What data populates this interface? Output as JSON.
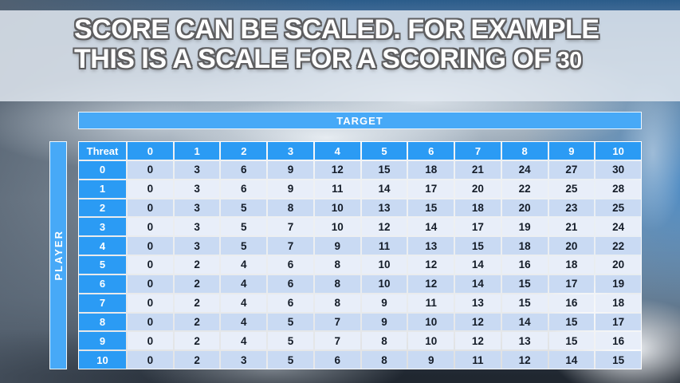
{
  "slide": {
    "title_line1": "SCORE CAN BE SCALED. FOR EXAMPLE",
    "title_line2_text": "THIS IS A SCALE FOR A SCORING OF",
    "title_line2_number": "30"
  },
  "table": {
    "target_label": "TARGET",
    "player_label": "PLAYER",
    "corner_label": "Threat",
    "column_headers": [
      "0",
      "1",
      "2",
      "3",
      "4",
      "5",
      "6",
      "7",
      "8",
      "9",
      "10"
    ],
    "rows": [
      {
        "threat": "0",
        "values": [
          0,
          3,
          6,
          9,
          12,
          15,
          18,
          21,
          24,
          27,
          30
        ]
      },
      {
        "threat": "1",
        "values": [
          0,
          3,
          6,
          9,
          11,
          14,
          17,
          20,
          22,
          25,
          28
        ]
      },
      {
        "threat": "2",
        "values": [
          0,
          3,
          5,
          8,
          10,
          13,
          15,
          18,
          20,
          23,
          25
        ]
      },
      {
        "threat": "3",
        "values": [
          0,
          3,
          5,
          7,
          10,
          12,
          14,
          17,
          19,
          21,
          24
        ]
      },
      {
        "threat": "4",
        "values": [
          0,
          3,
          5,
          7,
          9,
          11,
          13,
          15,
          18,
          20,
          22
        ]
      },
      {
        "threat": "5",
        "values": [
          0,
          2,
          4,
          6,
          8,
          10,
          12,
          14,
          16,
          18,
          20
        ]
      },
      {
        "threat": "6",
        "values": [
          0,
          2,
          4,
          6,
          8,
          10,
          12,
          14,
          15,
          17,
          19
        ]
      },
      {
        "threat": "7",
        "values": [
          0,
          2,
          4,
          6,
          8,
          9,
          11,
          13,
          15,
          16,
          18
        ]
      },
      {
        "threat": "8",
        "values": [
          0,
          2,
          4,
          5,
          7,
          9,
          10,
          12,
          14,
          15,
          17
        ]
      },
      {
        "threat": "9",
        "values": [
          0,
          2,
          4,
          5,
          7,
          8,
          10,
          12,
          13,
          15,
          16
        ]
      },
      {
        "threat": "10",
        "values": [
          0,
          2,
          3,
          5,
          6,
          8,
          9,
          11,
          12,
          14,
          15
        ]
      }
    ]
  },
  "colors": {
    "bar_blue": "#47A9F7",
    "header_blue": "#2B9BF4",
    "row_even": "#C9DAF3",
    "row_odd": "#E8EEF9"
  }
}
